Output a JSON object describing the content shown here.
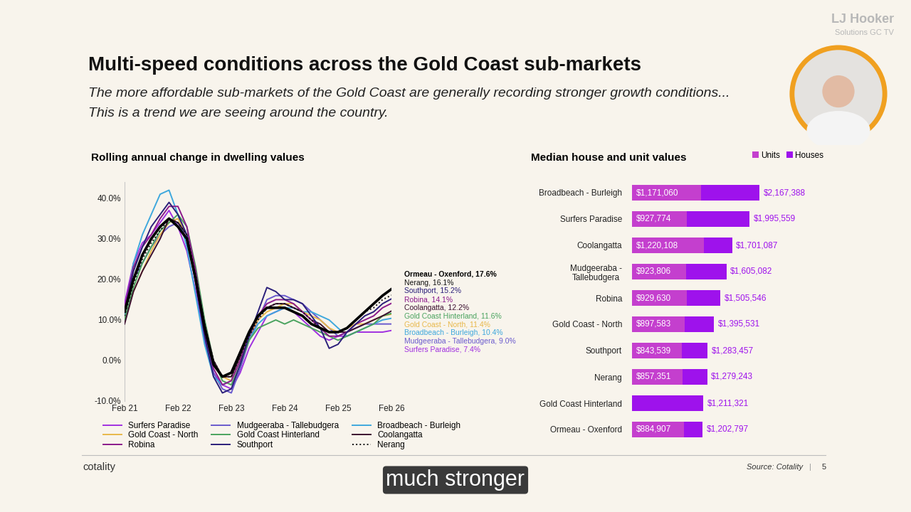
{
  "slide": {
    "title": "Multi-speed conditions across the Gold Coast sub-markets",
    "subtitle": [
      "The more affordable sub-markets of the Gold Coast are generally recording stronger growth conditions...",
      "This is a trend we are seeing around the country."
    ],
    "brand": [
      "LJ Hooker",
      "Solutions GC TV"
    ],
    "logo": "cotality",
    "source": "Source: Cotality",
    "separator": "|",
    "page": "5",
    "caption": "much stronger"
  },
  "chart_data": [
    {
      "type": "line",
      "title": "Rolling annual change in dwelling values",
      "categories": [
        "Feb 21",
        null,
        null,
        null,
        null,
        null,
        "Feb 22",
        null,
        null,
        null,
        null,
        null,
        "Feb 23",
        null,
        null,
        null,
        null,
        null,
        "Feb 24",
        null,
        null,
        null,
        null,
        null,
        "Feb 25",
        null,
        null,
        null,
        null,
        null,
        "Feb 26"
      ],
      "ylim": [
        -10,
        44
      ],
      "yticks": [
        {
          "value": -10,
          "label": "-10.0%"
        },
        {
          "value": 0,
          "label": "0.0%"
        },
        {
          "value": 10,
          "label": "10.0%"
        },
        {
          "value": 20,
          "label": "20.0%"
        },
        {
          "value": 30,
          "label": "30.0%"
        },
        {
          "value": 40,
          "label": "40.0%"
        }
      ],
      "grid": false,
      "legend": "bottom",
      "legend_names": [
        "Surfers Paradise",
        "Mudgeeraba - Tallebudgera",
        "Broadbeach - Burleigh",
        "Gold Coast - North",
        "Gold Coast Hinterland",
        "Coolangatta",
        "Robina",
        "Southport",
        "Nerang"
      ],
      "series": [
        {
          "name": "Ormeau - Oxenford",
          "color": "#000000",
          "line_style": "solid",
          "end_label": "Ormeau - Oxenford, 17.6%",
          "values": [
            12,
            20,
            26,
            30,
            33,
            35,
            33,
            30,
            20,
            8,
            -1,
            -4,
            -3,
            2,
            7,
            11,
            13,
            13,
            13,
            12,
            11,
            9,
            8,
            7,
            7,
            8,
            10,
            12,
            14,
            16,
            17.6
          ]
        },
        {
          "name": "Nerang",
          "color": "#111111",
          "line_style": "dotted",
          "end_label": "Nerang, 16.1%",
          "values": [
            11,
            19,
            25,
            29,
            32,
            35,
            34,
            31,
            21,
            9,
            0,
            -4,
            -4,
            1,
            6,
            10,
            13,
            14,
            14,
            13,
            12,
            10,
            8,
            7,
            7,
            8,
            10,
            12,
            13,
            15,
            16.1
          ]
        },
        {
          "name": "Southport",
          "color": "#2b1f7a",
          "line_style": "solid",
          "end_label": "Southport, 15.2%",
          "values": [
            12,
            22,
            28,
            33,
            36,
            39,
            36,
            31,
            19,
            6,
            -4,
            -8,
            -7,
            -1,
            6,
            12,
            18,
            17,
            15,
            15,
            14,
            11,
            8,
            3,
            4,
            7,
            9,
            11,
            12,
            14,
            15.2
          ]
        },
        {
          "name": "Robina",
          "color": "#8b1a8b",
          "line_style": "solid",
          "end_label": "Robina, 14.1%",
          "values": [
            13,
            23,
            28,
            31,
            35,
            38,
            38,
            33,
            22,
            8,
            -2,
            -6,
            -5,
            0,
            6,
            11,
            14,
            15,
            15,
            14,
            12,
            10,
            8,
            6,
            6,
            7,
            9,
            10,
            11,
            13,
            14.1
          ]
        },
        {
          "name": "Coolangatta",
          "color": "#3b0f2f",
          "line_style": "solid",
          "end_label": "Coolangatta, 12.2%",
          "values": [
            9,
            17,
            22,
            26,
            30,
            35,
            34,
            31,
            21,
            9,
            0,
            -4,
            -4,
            1,
            7,
            11,
            13,
            14,
            14,
            13,
            12,
            10,
            9,
            7,
            7,
            7,
            8,
            9,
            10,
            11,
            12.2
          ]
        },
        {
          "name": "Gold Coast Hinterland",
          "color": "#4aa35f",
          "line_style": "solid",
          "end_label": "Gold Coast Hinterland, 11.6%",
          "values": [
            10,
            18,
            24,
            28,
            32,
            34,
            36,
            33,
            23,
            10,
            0,
            -5,
            -6,
            -1,
            5,
            8,
            9,
            10,
            9,
            10,
            9,
            8,
            7,
            6,
            5,
            6,
            7,
            8,
            9,
            11,
            11.6
          ]
        },
        {
          "name": "Gold Coast - North",
          "color": "#e8b84a",
          "line_style": "solid",
          "end_label": "Gold Coast - North, 11.4%",
          "values": [
            10,
            17,
            22,
            27,
            31,
            34,
            35,
            31,
            21,
            8,
            -1,
            -4,
            -5,
            0,
            6,
            10,
            12,
            13,
            14,
            14,
            12,
            11,
            10,
            8,
            7,
            8,
            9,
            9,
            10,
            11,
            11.4
          ]
        },
        {
          "name": "Broadbeach - Burleigh",
          "color": "#3ea8dd",
          "line_style": "solid",
          "end_label": "Broadbeach - Burleigh, 10.4%",
          "values": [
            11,
            24,
            31,
            36,
            41,
            42,
            36,
            28,
            16,
            4,
            -4,
            -6,
            -5,
            0,
            5,
            9,
            11,
            12,
            13,
            13,
            12,
            12,
            11,
            10,
            8,
            6,
            7,
            8,
            9,
            10,
            10.4
          ]
        },
        {
          "name": "Mudgeeraba - Tallebudgera",
          "color": "#6a5acd",
          "line_style": "solid",
          "end_label": "Mudgeeraba - Tallebudgera, 9.0%",
          "values": [
            12,
            20,
            24,
            28,
            31,
            33,
            34,
            30,
            20,
            7,
            -3,
            -7,
            -8,
            -2,
            5,
            10,
            15,
            16,
            16,
            15,
            14,
            12,
            10,
            8,
            6,
            7,
            8,
            9,
            9,
            9,
            9.0
          ]
        },
        {
          "name": "Surfers Paradise",
          "color": "#a030e0",
          "line_style": "solid",
          "end_label": "Surfers Paradise, 7.4%",
          "values": [
            14,
            24,
            29,
            31,
            34,
            37,
            33,
            27,
            17,
            5,
            -3,
            -6,
            -7,
            -3,
            3,
            7,
            11,
            12,
            13,
            12,
            10,
            8,
            6,
            5,
            6,
            6,
            7,
            7,
            7,
            7,
            7.4
          ]
        }
      ]
    },
    {
      "type": "bar",
      "orientation": "horizontal",
      "title": "Median house and unit values",
      "categories": [
        "Broadbeach - Burleigh",
        "Surfers Paradise",
        "Coolangatta",
        "Mudgeeraba -\nTallebudgera",
        "Robina",
        "Gold Coast - North",
        "Southport",
        "Nerang",
        "Gold Coast Hinterland",
        "Ormeau - Oxenford"
      ],
      "xlim": [
        0,
        2600000
      ],
      "tick_labels": "y",
      "data_labels": true,
      "legend": "upper right",
      "stacked": false,
      "series": [
        {
          "name": "Units",
          "color": "#c43fce",
          "values": [
            1171060,
            927774,
            1220108,
            923806,
            929630,
            897583,
            843539,
            857351,
            null,
            884907
          ],
          "value_labels": [
            "$1,171,060",
            "$927,774",
            "$1,220,108",
            "$923,806",
            "$929,630",
            "$897,583",
            "$843,539",
            "$857,351",
            null,
            "$884,907"
          ]
        },
        {
          "name": "Houses",
          "color": "#9e12ec",
          "values": [
            2167388,
            1995559,
            1701087,
            1605082,
            1505546,
            1395531,
            1283457,
            1279243,
            1211321,
            1202797
          ],
          "value_labels": [
            "$2,167,388",
            "$1,995,559",
            "$1,701,087",
            "$1,605,082",
            "$1,505,546",
            "$1,395,531",
            "$1,283,457",
            "$1,279,243",
            "$1,211,321",
            "$1,202,797"
          ]
        }
      ]
    }
  ]
}
